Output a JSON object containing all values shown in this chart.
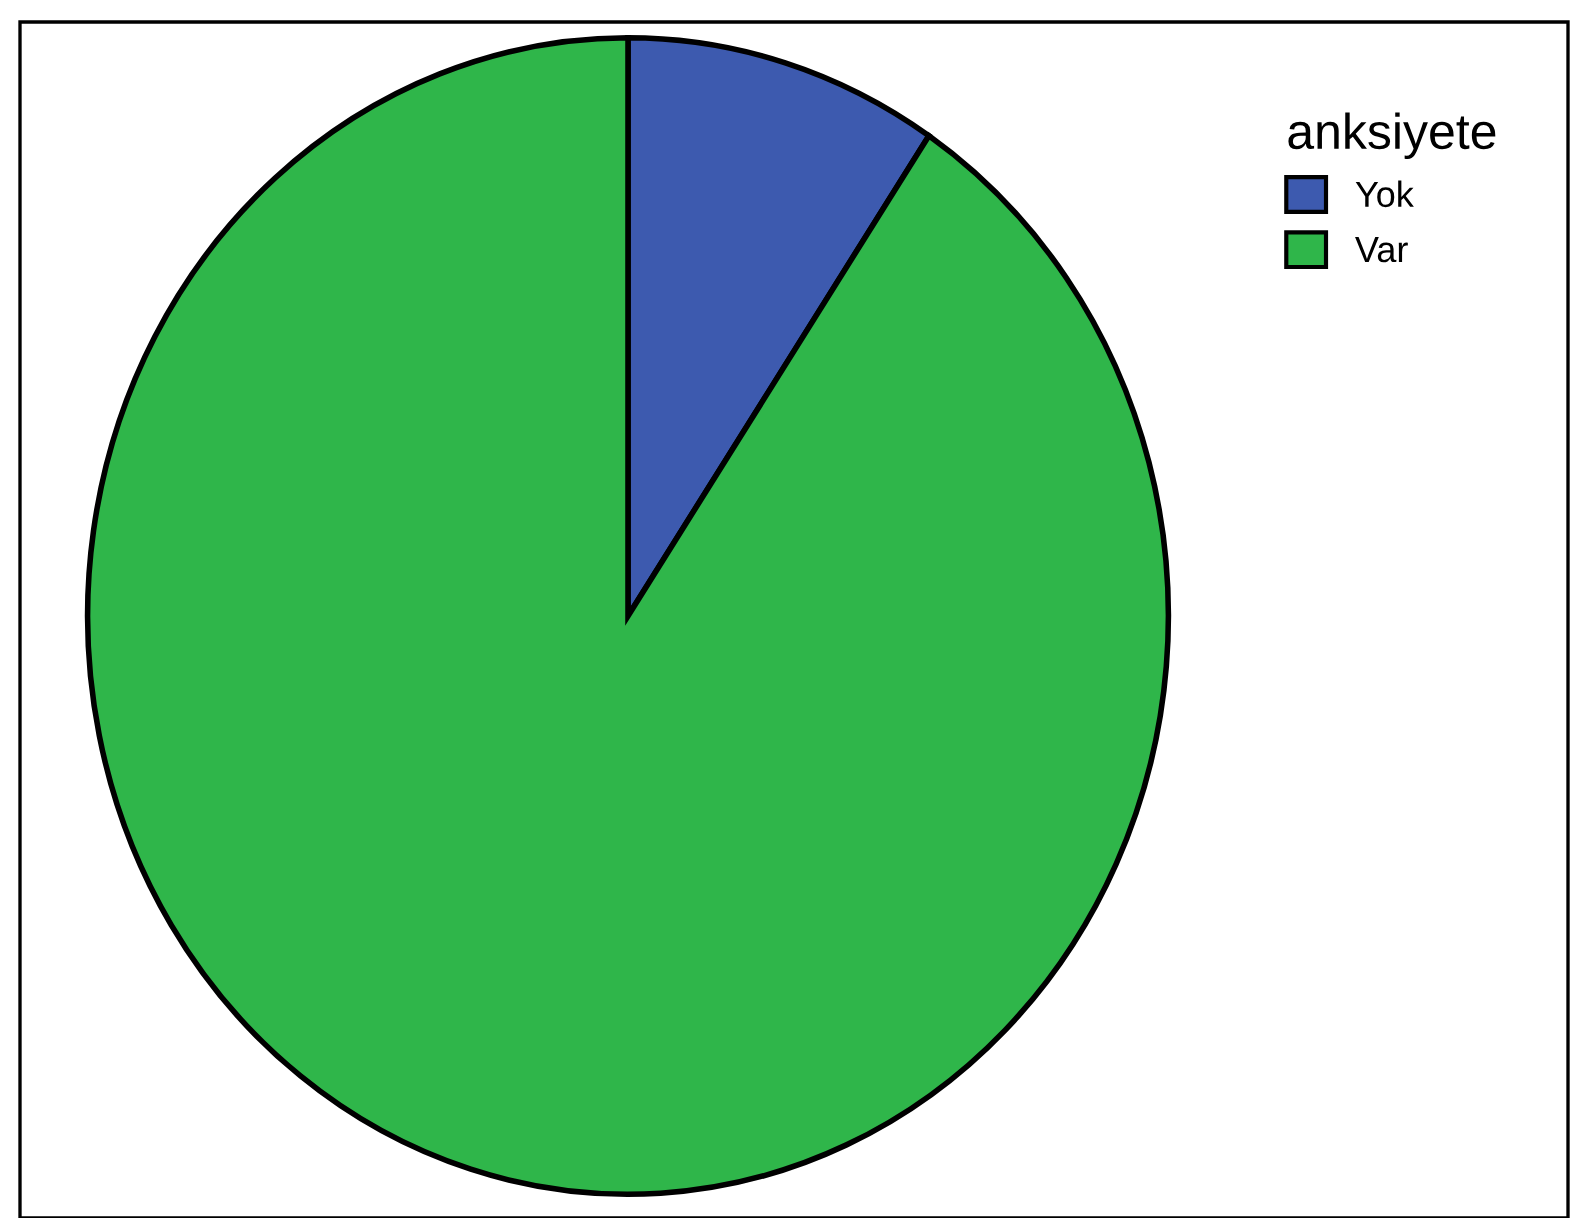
{
  "chart_data": {
    "type": "pie",
    "legend_title": "anksiyete",
    "categories": [
      "Yok",
      "Var"
    ],
    "values": [
      9.4,
      90.6
    ],
    "colors": [
      "#3d5aaf",
      "#2fb64a"
    ],
    "legend": "top right"
  }
}
